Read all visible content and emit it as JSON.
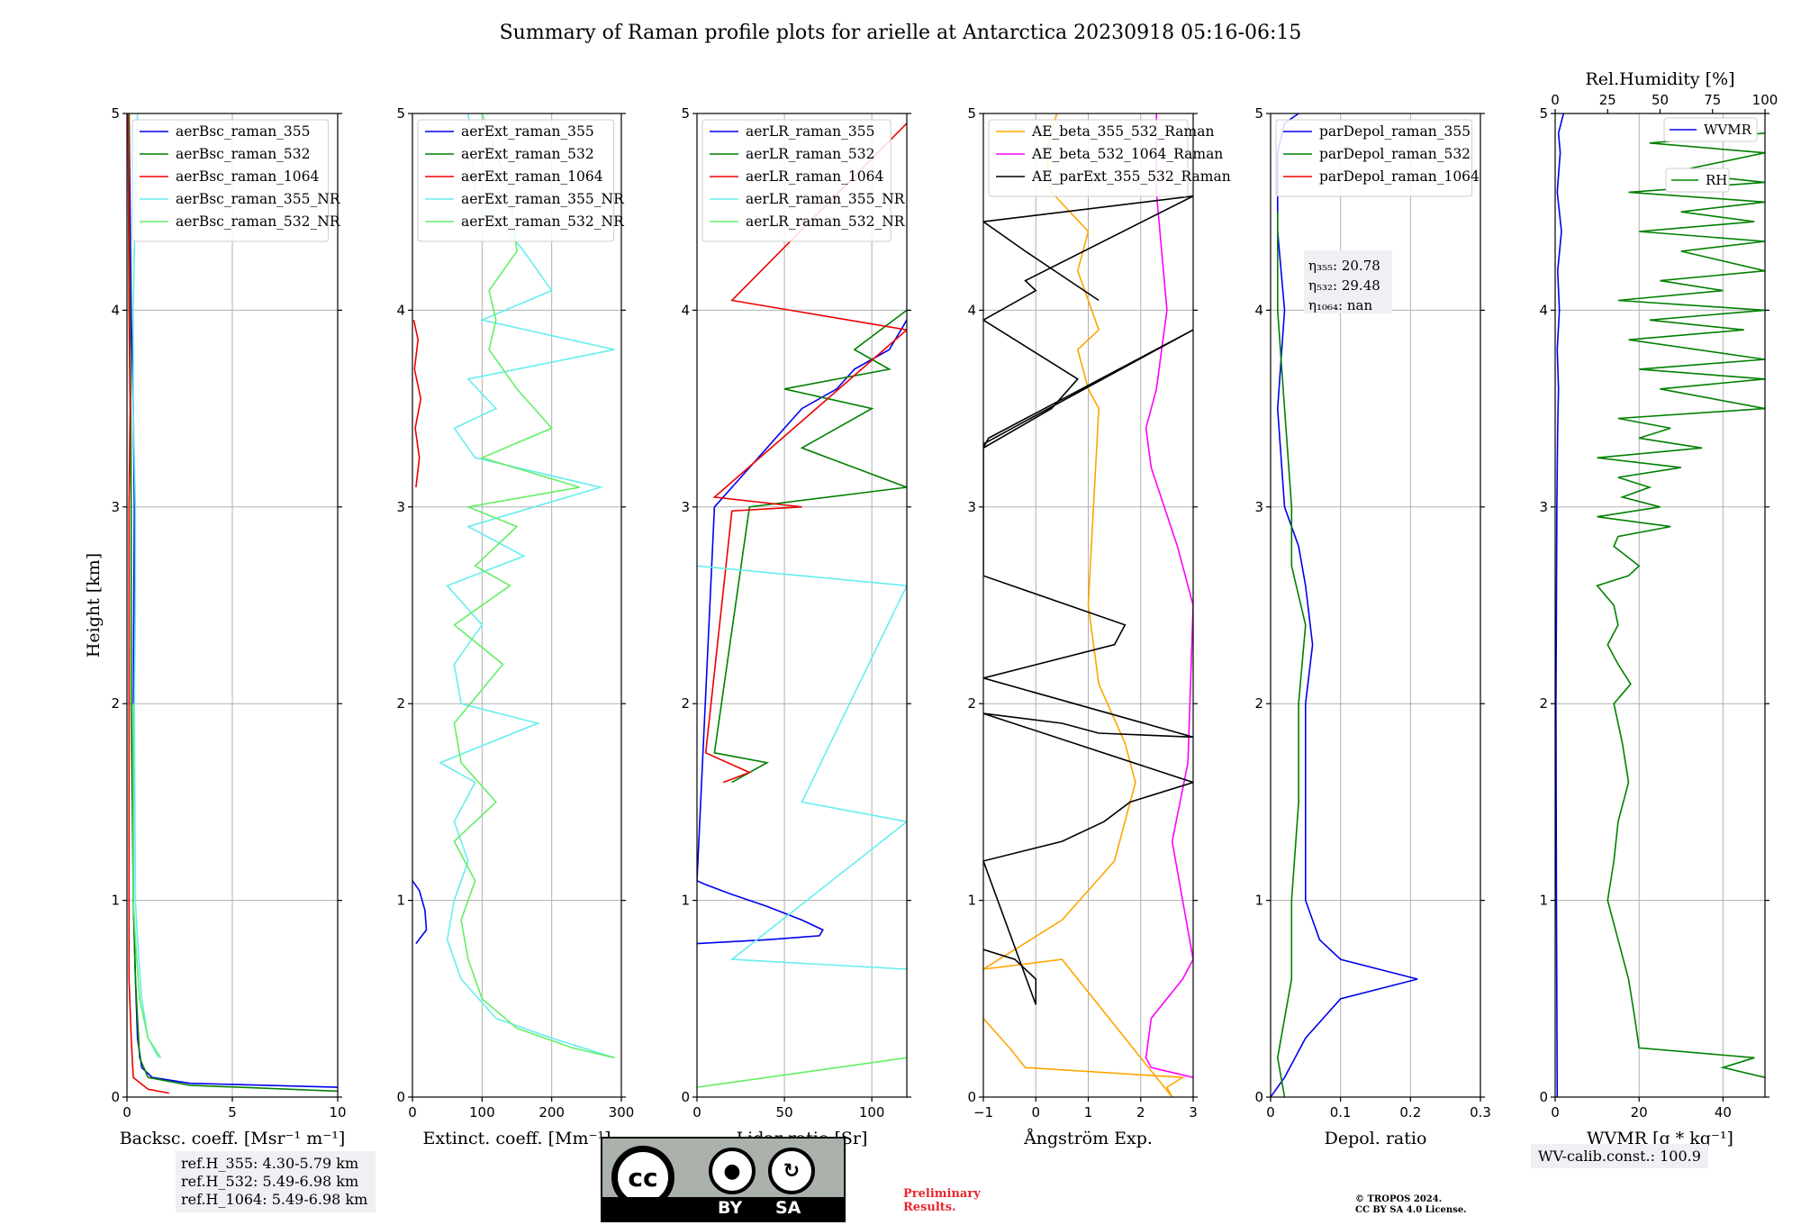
{
  "title": "Summary of Raman profile plots for arielle at Antarctica 20230918 05:16-06:15",
  "colors": {
    "blue": "#0000ee",
    "green": "#008000",
    "red": "#ee0000",
    "cyan": "#66eeee",
    "lightgreen": "#66ee66",
    "orange": "#ffa500",
    "magenta": "#ff00ff",
    "black": "#000000"
  },
  "chart_data": [
    {
      "type": "line",
      "id": "bsc",
      "xlabel": "Backsc. coeff. [Msr⁻¹ m⁻¹]",
      "ylabel": "Height [km]",
      "xlim": [
        0,
        10
      ],
      "ylim": [
        0,
        5
      ],
      "xticks": [
        0,
        5,
        10
      ],
      "yticks": [
        0,
        1,
        2,
        3,
        4,
        5
      ],
      "grid": true,
      "legend": "top-left",
      "series": [
        {
          "name": "aerBsc_raman_355",
          "color": "#0000ee",
          "x": [
            10,
            3,
            1.2,
            0.7,
            0.5,
            0.4,
            0.3,
            0.3,
            0.35,
            0.3,
            0.2,
            0.15,
            0.1
          ],
          "y": [
            0.05,
            0.07,
            0.1,
            0.15,
            0.3,
            0.6,
            1,
            2,
            3,
            3.5,
            4,
            4.5,
            5
          ]
        },
        {
          "name": "aerBsc_raman_532",
          "color": "#008000",
          "x": [
            10,
            3,
            1,
            0.6,
            0.5,
            0.4,
            0.3,
            0.2,
            0.2,
            0.15,
            0.1,
            0.1
          ],
          "y": [
            0.03,
            0.06,
            0.1,
            0.2,
            0.4,
            0.6,
            1,
            2,
            3,
            4,
            4.5,
            5
          ]
        },
        {
          "name": "aerBsc_raman_1064",
          "color": "#ee0000",
          "x": [
            2,
            1,
            0.3,
            0.2,
            0.1,
            0.1,
            0.1,
            0.1,
            0.15,
            0.1,
            0.05
          ],
          "y": [
            0.02,
            0.04,
            0.1,
            0.3,
            0.6,
            1,
            2,
            3,
            3.5,
            4,
            5
          ]
        },
        {
          "name": "aerBsc_raman_355_NR",
          "color": "#66eeee",
          "x": [
            1.5,
            1,
            0.7,
            0.5,
            0.4,
            0.35,
            0.4,
            0.4,
            0.3,
            0.3,
            0.35,
            0.4,
            0.5
          ],
          "y": [
            0.2,
            0.3,
            0.5,
            0.8,
            1,
            2,
            2.5,
            3,
            3.5,
            4,
            4.3,
            4.6,
            5
          ]
        },
        {
          "name": "aerBsc_raman_532_NR",
          "color": "#66ee66",
          "x": [
            1.6,
            1,
            0.6,
            0.4,
            0.3,
            0.3
          ],
          "y": [
            0.2,
            0.3,
            0.5,
            0.8,
            1,
            2
          ]
        }
      ],
      "annotation": [
        "ref.H_355: 4.30-5.79 km",
        "ref.H_532: 5.49-6.98 km",
        "ref.H_1064: 5.49-6.98 km"
      ]
    },
    {
      "type": "line",
      "id": "ext",
      "xlabel": "Extinct. coeff. [Mm⁻¹]",
      "xlim": [
        0,
        300
      ],
      "ylim": [
        0,
        5
      ],
      "xticks": [
        0,
        100,
        200,
        300
      ],
      "yticks": [
        0,
        1,
        2,
        3,
        4,
        5
      ],
      "grid": true,
      "legend": "top-left",
      "series": [
        {
          "name": "aerExt_raman_355",
          "color": "#0000ee",
          "x": [
            5,
            20,
            18,
            10,
            0
          ],
          "y": [
            0.78,
            0.85,
            0.95,
            1.05,
            1.1
          ]
        },
        {
          "name": "aerExt_raman_532",
          "color": "#008000",
          "x": [],
          "y": []
        },
        {
          "name": "aerExt_raman_1064",
          "color": "#ee0000",
          "x": [
            5,
            10,
            4,
            12,
            3,
            8,
            2
          ],
          "y": [
            3.1,
            3.25,
            3.4,
            3.55,
            3.7,
            3.85,
            3.95
          ]
        },
        {
          "name": "aerExt_raman_355_NR",
          "color": "#66eeee",
          "x": [
            290,
            200,
            120,
            70,
            50,
            60,
            80,
            60,
            90,
            40,
            180,
            70,
            60,
            100,
            50,
            160,
            80,
            270,
            90,
            60,
            120,
            80,
            290,
            100,
            200,
            160,
            90,
            80
          ],
          "y": [
            0.2,
            0.3,
            0.4,
            0.6,
            0.8,
            1.0,
            1.2,
            1.4,
            1.6,
            1.7,
            1.9,
            2.0,
            2.2,
            2.4,
            2.6,
            2.75,
            2.9,
            3.1,
            3.25,
            3.4,
            3.5,
            3.65,
            3.8,
            3.95,
            4.1,
            4.3,
            4.6,
            5.0
          ]
        },
        {
          "name": "aerExt_raman_532_NR",
          "color": "#66ee66",
          "x": [
            290,
            230,
            150,
            100,
            80,
            70,
            90,
            60,
            120,
            70,
            60,
            130,
            60,
            140,
            90,
            150,
            80,
            240,
            100,
            200,
            150,
            110,
            120,
            110,
            150,
            140,
            100
          ],
          "y": [
            0.2,
            0.25,
            0.35,
            0.5,
            0.7,
            0.9,
            1.1,
            1.3,
            1.5,
            1.7,
            1.9,
            2.2,
            2.4,
            2.6,
            2.7,
            2.9,
            3.0,
            3.1,
            3.25,
            3.4,
            3.6,
            3.8,
            3.95,
            4.1,
            4.3,
            4.6,
            5.0
          ]
        }
      ]
    },
    {
      "type": "line",
      "id": "lr",
      "xlabel": "Lidar ratio [Sr]",
      "xlim": [
        0,
        120
      ],
      "ylim": [
        0,
        5
      ],
      "xticks": [
        0,
        50,
        100
      ],
      "yticks": [
        0,
        1,
        2,
        3,
        4,
        5
      ],
      "grid": true,
      "legend": "top-left",
      "series": [
        {
          "name": "aerLR_raman_355",
          "color": "#0000ee",
          "x": [
            0,
            40,
            70,
            72,
            60,
            40,
            20,
            5,
            0,
            10,
            20,
            30,
            40,
            50,
            60,
            80,
            90,
            110,
            120
          ],
          "y": [
            0.78,
            0.8,
            0.82,
            0.85,
            0.9,
            0.97,
            1.03,
            1.08,
            1.1,
            3.0,
            3.1,
            3.2,
            3.3,
            3.4,
            3.5,
            3.6,
            3.7,
            3.8,
            3.95
          ]
        },
        {
          "name": "aerLR_raman_532",
          "color": "#008000",
          "x": [
            20,
            40,
            10,
            30,
            120,
            60,
            100,
            50,
            110,
            90,
            120
          ],
          "y": [
            1.6,
            1.7,
            1.75,
            3.0,
            3.1,
            3.3,
            3.5,
            3.6,
            3.7,
            3.8,
            4.0
          ]
        },
        {
          "name": "aerLR_raman_1064",
          "color": "#ee0000",
          "x": [
            15,
            30,
            5,
            20,
            60,
            10,
            120,
            20,
            120
          ],
          "y": [
            1.6,
            1.65,
            1.75,
            2.98,
            3.0,
            3.05,
            3.9,
            4.05,
            4.95
          ]
        },
        {
          "name": "aerLR_raman_355_NR",
          "color": "#66eeee",
          "x": [
            120,
            20,
            120,
            60,
            120,
            0
          ],
          "y": [
            0.65,
            0.7,
            1.4,
            1.5,
            2.6,
            2.7
          ]
        },
        {
          "name": "aerLR_raman_532_NR",
          "color": "#66ee66",
          "x": [
            0,
            120
          ],
          "y": [
            0.05,
            0.2
          ]
        }
      ]
    },
    {
      "type": "line",
      "id": "ae",
      "xlabel": "Ångström Exp.",
      "xlim": [
        -1,
        3
      ],
      "ylim": [
        0,
        5
      ],
      "xticks": [
        -1,
        0,
        1,
        2,
        3
      ],
      "yticks": [
        0,
        1,
        2,
        3,
        4,
        5
      ],
      "grid": true,
      "legend": "top-left",
      "series": [
        {
          "name": "AE_beta_355_532_Raman",
          "color": "#ffa500",
          "x": [
            -1,
            -0.5,
            -0.2,
            1.0,
            2.8,
            2.5,
            2.6,
            0.5,
            -1,
            0.5,
            1.5,
            1.9,
            1.7,
            1.2,
            1.0,
            1.1,
            1.2,
            1.0,
            0.8,
            1.2,
            0.8,
            1.0,
            0.3,
            0.2,
            0.4
          ],
          "y": [
            0.4,
            0.25,
            0.15,
            0.13,
            0.1,
            0.05,
            0,
            0.7,
            0.65,
            0.9,
            1.2,
            1.6,
            1.8,
            2.1,
            2.5,
            3.0,
            3.5,
            3.6,
            3.8,
            3.9,
            4.2,
            4.4,
            4.6,
            4.8,
            5.0
          ]
        },
        {
          "name": "AE_beta_532_1064_Raman",
          "color": "#ff00ff",
          "x": [
            3,
            2.2,
            2.1,
            2.2,
            2.8,
            3,
            2.8,
            2.6,
            2.9,
            3,
            2.7,
            2.2,
            2.1,
            2.3,
            2.4,
            2.5,
            2.4,
            2.3,
            2.3
          ],
          "y": [
            0.1,
            0.15,
            0.2,
            0.4,
            0.6,
            0.7,
            1.0,
            1.3,
            1.7,
            2.5,
            2.8,
            3.2,
            3.4,
            3.6,
            3.8,
            4.0,
            4.3,
            4.6,
            5.0
          ]
        },
        {
          "name": "AE_parExt_355_532_Raman",
          "color": "#000000",
          "x": [
            -1,
            -0.4,
            0,
            0,
            -1,
            0.5,
            1.3,
            1.8,
            3,
            -1,
            0.5,
            1.2,
            3,
            -1,
            1.5,
            1.7,
            -1,
            -1,
            3,
            -0.9,
            -1,
            0.3,
            0.8,
            -1,
            0,
            -0.2,
            3,
            -1,
            -0.2,
            1.2
          ],
          "y": [
            0.75,
            0.7,
            0.6,
            0.47,
            1.2,
            1.3,
            1.4,
            1.5,
            1.6,
            1.95,
            1.9,
            1.85,
            1.83,
            2.13,
            2.3,
            2.4,
            2.65,
            3.32,
            3.9,
            3.35,
            3.3,
            3.5,
            3.65,
            3.95,
            4.1,
            4.15,
            4.58,
            4.45,
            4.3,
            4.05
          ]
        }
      ]
    },
    {
      "type": "line",
      "id": "depol",
      "xlabel": "Depol. ratio",
      "xlim": [
        0,
        0.3
      ],
      "ylim": [
        0,
        5
      ],
      "xticks": [
        0,
        0.1,
        0.2,
        0.3
      ],
      "yticks": [
        0,
        1,
        2,
        3,
        4,
        5
      ],
      "grid": true,
      "legend": "top-left",
      "series": [
        {
          "name": "parDepol_raman_355",
          "color": "#0000ee",
          "x": [
            0,
            0.02,
            0.05,
            0.1,
            0.21,
            0.1,
            0.07,
            0.05,
            0.05,
            0.05,
            0.06,
            0.05,
            0.04,
            0.02,
            0.01,
            0.02,
            0.01,
            0.01,
            0.02,
            0.04
          ],
          "y": [
            0.0,
            0.1,
            0.3,
            0.5,
            0.6,
            0.7,
            0.8,
            1.0,
            1.5,
            2.0,
            2.3,
            2.6,
            2.8,
            3.0,
            3.5,
            4.0,
            4.4,
            4.8,
            4.95,
            5.0
          ]
        },
        {
          "name": "parDepol_raman_532",
          "color": "#008000",
          "x": [
            0.02,
            0.01,
            0.02,
            0.03,
            0.03,
            0.04,
            0.04,
            0.05,
            0.03,
            0.03,
            0.02,
            0.01,
            0.01
          ],
          "y": [
            0.0,
            0.2,
            0.4,
            0.6,
            1.0,
            1.5,
            2.0,
            2.4,
            2.7,
            3.0,
            3.5,
            4.0,
            4.5
          ]
        },
        {
          "name": "parDepol_raman_1064",
          "color": "#ee0000",
          "x": [],
          "y": []
        }
      ],
      "annotation": [
        "η₃₅₅: 20.78",
        "η₅₃₂: 29.48",
        "η₁₀₆₄: nan"
      ]
    },
    {
      "type": "line",
      "id": "wv",
      "xlabel": "WVMR [g * kg⁻¹]",
      "x2label": "Rel.Humidity [%]",
      "xlim": [
        0,
        50
      ],
      "x2lim": [
        0,
        100
      ],
      "ylim": [
        0,
        5
      ],
      "xticks": [
        0,
        20,
        40
      ],
      "x2ticks": [
        0,
        25,
        50,
        75,
        100
      ],
      "yticks": [
        0,
        1,
        2,
        3,
        4,
        5
      ],
      "grid": true,
      "legend": "top-right",
      "series": [
        {
          "name": "WVMR",
          "color": "#0000ee",
          "axis": "bottom",
          "x": [
            0.5,
            0.3,
            0.2,
            0.3,
            0.4,
            0.5,
            0.6,
            0.8,
            0.5,
            1.0,
            0.6,
            1.5,
            0.5,
            1.2,
            0.8,
            2
          ],
          "y": [
            0,
            1,
            2,
            2.5,
            3,
            3.2,
            3.4,
            3.6,
            3.8,
            4.0,
            4.2,
            4.4,
            4.6,
            4.8,
            4.9,
            5.0
          ]
        },
        {
          "name": "RH",
          "color": "#008000",
          "axis": "top",
          "x": [
            100,
            80,
            95,
            40,
            38,
            35,
            30,
            25,
            28,
            30,
            35,
            32,
            28,
            36,
            30,
            25,
            30,
            28,
            20,
            35,
            40,
            28,
            30,
            55,
            20,
            50,
            32,
            45,
            30,
            60,
            20,
            70,
            40,
            55,
            30,
            100,
            50,
            100,
            40,
            100,
            35,
            90,
            45,
            100,
            30,
            80,
            50,
            100,
            60,
            100,
            40,
            95,
            60,
            100,
            35,
            100,
            55,
            100,
            45,
            100
          ],
          "y": [
            0.1,
            0.15,
            0.2,
            0.25,
            0.4,
            0.6,
            0.8,
            1.0,
            1.2,
            1.4,
            1.6,
            1.8,
            2.0,
            2.1,
            2.2,
            2.3,
            2.4,
            2.5,
            2.6,
            2.65,
            2.7,
            2.8,
            2.85,
            2.9,
            2.95,
            3.0,
            3.05,
            3.1,
            3.15,
            3.2,
            3.25,
            3.3,
            3.35,
            3.4,
            3.45,
            3.5,
            3.6,
            3.65,
            3.7,
            3.75,
            3.85,
            3.9,
            3.95,
            4.0,
            4.05,
            4.1,
            4.15,
            4.2,
            4.3,
            4.35,
            4.4,
            4.45,
            4.5,
            4.55,
            4.6,
            4.65,
            4.7,
            4.8,
            4.85,
            4.9
          ]
        }
      ],
      "annotation": [
        "WV-calib.const.: 100.9"
      ]
    }
  ],
  "footer": {
    "cc_logo_text": "cc",
    "cc_by": "BY",
    "cc_sa": "SA",
    "preliminary": [
      "Preliminary",
      "Results."
    ],
    "copyright": [
      "© TROPOS 2024.",
      "CC BY SA 4.0 License."
    ]
  }
}
